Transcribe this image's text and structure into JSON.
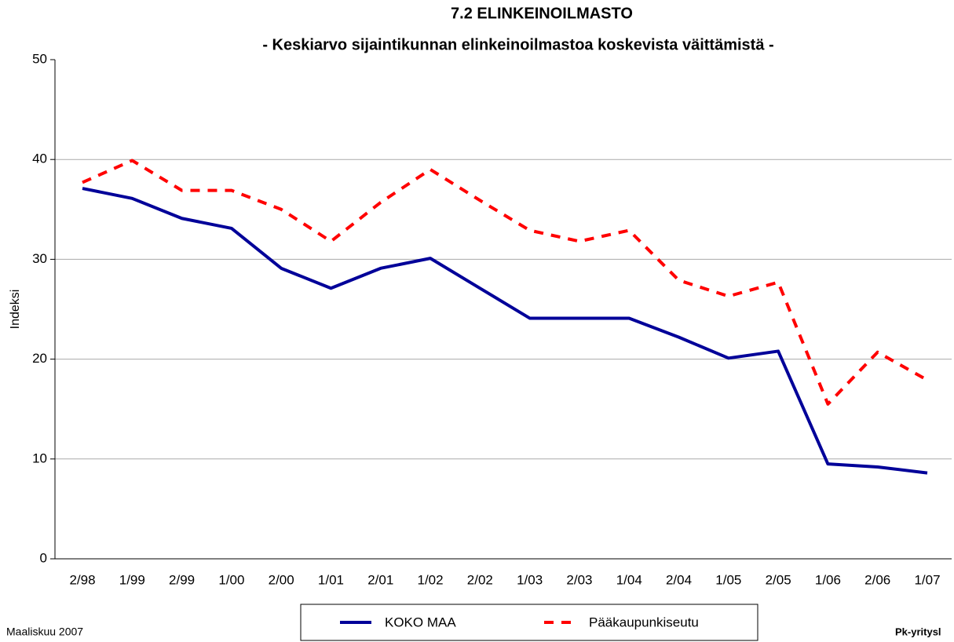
{
  "chart_data": {
    "type": "line",
    "title": "7.2 ELINKEINOILMASTO",
    "subtitle": "- Keskiarvo sijaintikunnan elinkeinoilmastoa koskevista väittämistä -",
    "y_label": "Indeksi",
    "categories": [
      "2/98",
      "1/99",
      "2/99",
      "1/00",
      "2/00",
      "1/01",
      "2/01",
      "1/02",
      "2/02",
      "1/03",
      "2/03",
      "1/04",
      "2/04",
      "1/05",
      "2/05",
      "1/06",
      "2/06",
      "1/07"
    ],
    "series": [
      {
        "name": "KOKO MAA",
        "color": "#000099",
        "linestyle": "solid",
        "values": [
          37.1,
          36.1,
          34.1,
          33.1,
          29.1,
          27.1,
          29.1,
          30.1,
          27.1,
          24.1,
          24.1,
          24.1,
          22.2,
          20.1,
          20.8,
          9.5,
          9.2,
          8.6
        ]
      },
      {
        "name": "Pääkaupunkiseutu",
        "color": "#ff0000",
        "linestyle": "dashed",
        "values": [
          37.7,
          39.9,
          36.9,
          36.9,
          35.0,
          31.8,
          35.7,
          39.0,
          35.9,
          32.9,
          31.8,
          32.9,
          27.9,
          26.3,
          27.7,
          15.5,
          20.7,
          17.9
        ]
      }
    ],
    "ylim": [
      0,
      50
    ],
    "yticks": [
      0,
      10,
      20,
      30,
      40,
      50
    ],
    "grid": true,
    "footer_left": "Maaliskuu 2007",
    "footer_right": "Pk-yritysl"
  }
}
